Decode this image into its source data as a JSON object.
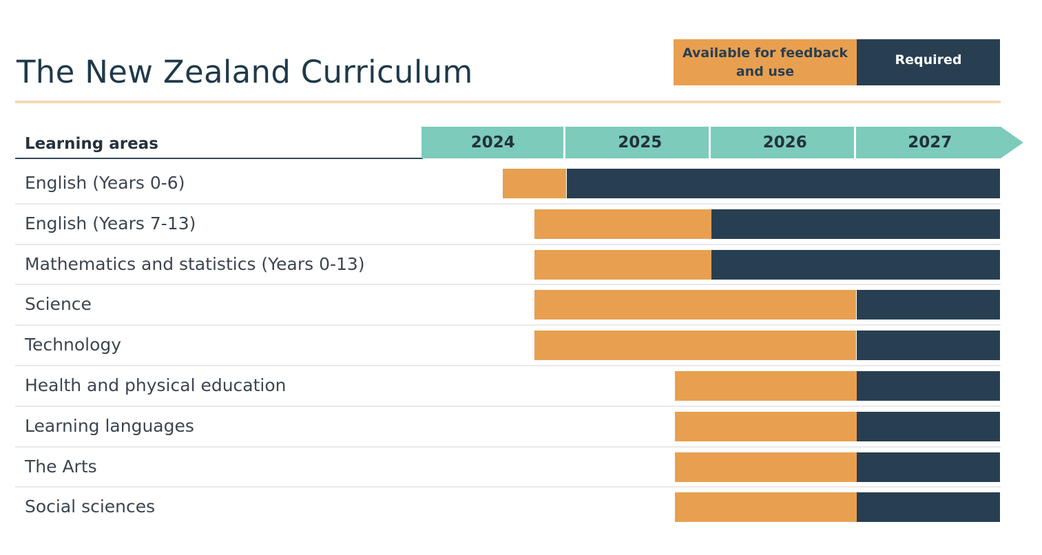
{
  "title": "The New Zealand Curriculum",
  "legend": {
    "available": "Available for feedback and use",
    "required": "Required"
  },
  "colors": {
    "available": "#e8a050",
    "required": "#283f51",
    "timeline": "#7ccbbb",
    "title": "#1f3a4a",
    "rule": "#f6d7b8",
    "header_rule": "#2f4658"
  },
  "chart_data": {
    "type": "bar",
    "subtype": "timeline-gantt",
    "xaxis": {
      "years": [
        "2024",
        "2025",
        "2026",
        "2027"
      ],
      "range": [
        2024,
        2028
      ]
    },
    "header_label": "Learning areas",
    "series": [
      {
        "name": "Available for feedback and use"
      },
      {
        "name": "Required"
      }
    ],
    "rows": [
      {
        "label": "English (Years 0-6)",
        "available_start": 2024.56,
        "required_start": 2025.0,
        "end": 2028
      },
      {
        "label": "English (Years 7-13)",
        "available_start": 2024.78,
        "required_start": 2026.0,
        "end": 2028
      },
      {
        "label": "Mathematics and statistics (Years 0-13)",
        "available_start": 2024.78,
        "required_start": 2026.0,
        "end": 2028
      },
      {
        "label": "Science",
        "available_start": 2024.78,
        "required_start": 2027.0,
        "end": 2028
      },
      {
        "label": "Technology",
        "available_start": 2024.78,
        "required_start": 2027.0,
        "end": 2028
      },
      {
        "label": "Health and physical education",
        "available_start": 2025.75,
        "required_start": 2027.0,
        "end": 2028
      },
      {
        "label": "Learning languages",
        "available_start": 2025.75,
        "required_start": 2027.0,
        "end": 2028
      },
      {
        "label": "The Arts",
        "available_start": 2025.75,
        "required_start": 2027.0,
        "end": 2028
      },
      {
        "label": "Social sciences",
        "available_start": 2025.75,
        "required_start": 2027.0,
        "end": 2028
      }
    ]
  }
}
